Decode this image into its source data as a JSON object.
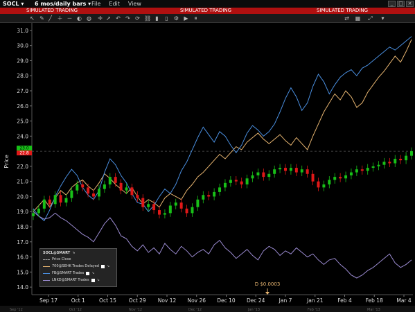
{
  "titlebar": {
    "symbol": "SOCL ▾",
    "period": "6 mos/daily bars ▾",
    "menu": [
      "File",
      "Edit",
      "View"
    ]
  },
  "banner": {
    "text": "SIMULATED TRADING"
  },
  "toolbar": {
    "icons": [
      "cursor-icon",
      "draw-icon",
      "line-icon",
      "zoom-in-icon",
      "zoom-out-icon",
      "color-icon",
      "globe-icon",
      "crosshair-icon",
      "arrow-icon",
      "undo-icon",
      "redo-icon",
      "refresh-icon",
      "link-icon",
      "bars-icon",
      "candles-icon",
      "settings-icon",
      "play-icon",
      "pause-icon",
      "sync-icon",
      "layout-icon",
      "expand-icon",
      "close-icon"
    ]
  },
  "legend": {
    "title": "SOCL@SMART",
    "rows": [
      {
        "label": "Price Close",
        "color": "#a0a0a0"
      },
      {
        "label": "700@SEHK Trades Delayed",
        "color": "#e6b470"
      },
      {
        "label": "FB@SMART Trades",
        "color": "#4a8fe0"
      },
      {
        "label": "LNKD@SMART Trades",
        "color": "#9a8ad0"
      }
    ]
  },
  "annotation": {
    "text": "D $0.0003",
    "x": "Dec 26"
  },
  "price_tags": {
    "upper": "23.0",
    "lower": "22.8"
  },
  "chart_data": {
    "type": "line",
    "ylabel": "Price",
    "ylim": [
      13.5,
      31.5
    ],
    "yticks": [
      "31.0",
      "30.0",
      "29.0",
      "28.0",
      "27.0",
      "26.0",
      "25.0",
      "24.0",
      "23.0",
      "22.0",
      "21.0",
      "20.0",
      "19.0",
      "18.0",
      "17.0",
      "16.0",
      "15.0",
      "14.0"
    ],
    "xticks": [
      "Sep 17",
      "Oct 1",
      "Oct 15",
      "Oct 29",
      "Nov 12",
      "Nov 26",
      "Dec 10",
      "Dec 24",
      "Jan 7",
      "Jan 21",
      "Feb 4",
      "Feb 18",
      "Mar 4"
    ],
    "month_ticks": [
      "Sep '12",
      "Oct '12",
      "Nov '12",
      "Dec '12",
      "Jan '13",
      "Feb '13",
      "Mar '13"
    ],
    "series": [
      {
        "name": "SOCL",
        "color": "#00c000",
        "values": [
          18.9,
          19.2,
          19.8,
          19.5,
          20.1,
          19.6,
          19.9,
          20.4,
          20.8,
          20.6,
          20.2,
          20.0,
          20.5,
          20.8,
          21.3,
          20.9,
          20.4,
          20.6,
          20.1,
          19.9,
          19.3,
          19.5,
          19.1,
          18.8,
          18.9,
          19.4,
          19.6,
          19.2,
          18.9,
          19.3,
          19.8,
          20.1,
          20.0,
          20.3,
          20.6,
          20.9,
          21.1,
          21.0,
          20.8,
          21.2,
          21.4,
          21.6,
          21.3,
          21.5,
          21.8,
          21.9,
          21.7,
          21.9,
          21.6,
          21.8,
          21.5,
          21.0,
          20.6,
          20.8,
          21.1,
          21.3,
          21.2,
          21.4,
          21.6,
          21.8,
          21.7,
          21.9,
          22.0,
          22.1,
          22.3,
          22.2,
          22.5,
          22.4,
          22.7,
          23.0
        ]
      },
      {
        "name": "700@SEHK",
        "color": "#e6b470",
        "values": [
          19.0,
          19.4,
          19.8,
          19.3,
          19.9,
          20.4,
          20.1,
          20.6,
          20.9,
          21.1,
          20.7,
          20.4,
          20.9,
          21.5,
          21.2,
          20.8,
          20.5,
          20.2,
          20.6,
          20.0,
          19.5,
          19.8,
          19.6,
          19.3,
          19.9,
          20.2,
          20.0,
          19.8,
          20.4,
          20.8,
          21.3,
          21.6,
          22.0,
          22.4,
          22.8,
          22.5,
          22.9,
          23.3,
          23.1,
          23.6,
          23.9,
          24.2,
          23.8,
          23.5,
          23.8,
          24.1,
          23.7,
          23.4,
          23.9,
          23.5,
          23.1,
          24.0,
          24.8,
          25.6,
          26.2,
          26.8,
          26.4,
          27.0,
          26.6,
          25.9,
          26.2,
          26.9,
          27.4,
          27.9,
          28.3,
          28.8,
          29.3,
          28.9,
          29.6,
          30.4
        ]
      },
      {
        "name": "FB@SMART",
        "color": "#4a8fe0",
        "values": [
          19.2,
          18.7,
          18.4,
          19.1,
          20.0,
          20.7,
          21.3,
          21.8,
          21.4,
          20.6,
          20.1,
          19.8,
          20.4,
          21.6,
          22.5,
          22.1,
          21.4,
          20.9,
          20.2,
          19.6,
          19.5,
          19.0,
          19.4,
          20.0,
          20.5,
          20.2,
          20.8,
          21.7,
          22.3,
          23.1,
          23.9,
          24.6,
          24.1,
          23.6,
          24.3,
          24.0,
          23.4,
          22.9,
          23.4,
          24.2,
          24.7,
          24.4,
          24.0,
          24.3,
          24.8,
          25.6,
          26.5,
          27.2,
          26.6,
          25.7,
          26.2,
          27.3,
          28.1,
          27.6,
          26.8,
          27.4,
          27.9,
          28.2,
          28.4,
          28.0,
          28.5,
          28.7,
          29.0,
          29.3,
          29.6,
          29.9,
          29.7,
          30.0,
          30.3,
          30.6
        ]
      },
      {
        "name": "LNKD@SMART",
        "color": "#9a8ad0",
        "values": [
          19.0,
          18.7,
          18.5,
          18.6,
          18.9,
          18.6,
          18.4,
          18.1,
          17.8,
          17.5,
          17.3,
          17.0,
          17.6,
          18.2,
          18.6,
          18.1,
          17.4,
          17.2,
          16.7,
          16.4,
          16.8,
          16.3,
          16.6,
          16.2,
          16.9,
          16.5,
          16.2,
          16.7,
          16.4,
          16.0,
          16.3,
          16.5,
          16.2,
          16.8,
          17.1,
          16.6,
          16.3,
          15.9,
          16.2,
          16.5,
          16.1,
          15.8,
          16.4,
          16.7,
          16.5,
          16.1,
          16.4,
          16.2,
          16.6,
          16.3,
          16.0,
          16.2,
          15.8,
          15.5,
          15.8,
          15.9,
          15.5,
          15.2,
          14.8,
          14.6,
          14.8,
          15.1,
          15.3,
          15.6,
          15.9,
          16.2,
          15.6,
          15.3,
          15.5,
          15.8
        ]
      }
    ]
  }
}
